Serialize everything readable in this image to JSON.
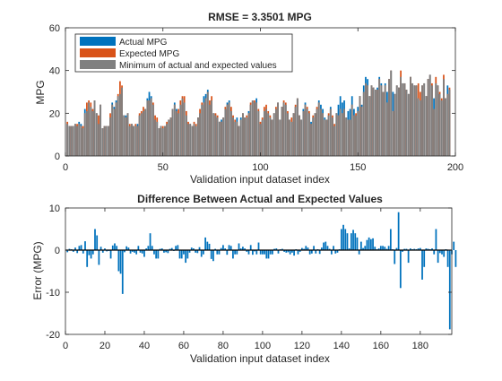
{
  "chart_data": [
    {
      "type": "bar",
      "title": "RMSE = 3.3501 MPG",
      "xlabel": "Validation input dataset index",
      "ylabel": "MPG",
      "xlim": [
        0,
        200
      ],
      "ylim": [
        0,
        60
      ],
      "xticks": [
        "0",
        "50",
        "100",
        "150",
        "200"
      ],
      "yticks": [
        "0",
        "20",
        "40",
        "60"
      ],
      "grid": false,
      "legend_placement": "top-left",
      "series": [
        {
          "name": "Actual MPG",
          "color": "#0072BD",
          "values": [
            15,
            14,
            14,
            14,
            15,
            14,
            16,
            15,
            13,
            22,
            21,
            25,
            23,
            21,
            26,
            20,
            15,
            24,
            13,
            14,
            14,
            14,
            18,
            25,
            23,
            26,
            28,
            29,
            32,
            19,
            19,
            20,
            14,
            15,
            14,
            14,
            15,
            19,
            20,
            21,
            22,
            27,
            30,
            28,
            24,
            17,
            16,
            13,
            14,
            13,
            14,
            15,
            17,
            18,
            22,
            25,
            22,
            20,
            24,
            27,
            25,
            19,
            15,
            15,
            14,
            15,
            14,
            18,
            20,
            24,
            28,
            29,
            31,
            24,
            26,
            20,
            19,
            18,
            16,
            17,
            18,
            22,
            25,
            26,
            21,
            18,
            16,
            18,
            14,
            18,
            20,
            18,
            18,
            21,
            24,
            26,
            25,
            27,
            21,
            15,
            17,
            21,
            22,
            20,
            18,
            17,
            20,
            22,
            25,
            17,
            23,
            25,
            24,
            20,
            17,
            16,
            20,
            23,
            27,
            19,
            17,
            22,
            25,
            22,
            20,
            16,
            18,
            20,
            22,
            26,
            24,
            22,
            18,
            17,
            19,
            23,
            18,
            14,
            20,
            24,
            28,
            25,
            26,
            18,
            21,
            22,
            28,
            22,
            19,
            23,
            28,
            24,
            33,
            37,
            36,
            28,
            33,
            32,
            31,
            32,
            37,
            34,
            30,
            34,
            30,
            36,
            40,
            30,
            29,
            33,
            32,
            37,
            34,
            34,
            31,
            29,
            37,
            34,
            33,
            33,
            27,
            26,
            33,
            34,
            28,
            36,
            38,
            33,
            27,
            34,
            33,
            29,
            26,
            36,
            27,
            33,
            31
          ]
        },
        {
          "name": "Expected MPG",
          "color": "#D95319",
          "values": [
            16,
            14,
            14,
            14,
            15,
            15,
            15,
            14,
            14,
            20,
            25,
            26,
            25,
            22,
            26,
            20,
            19,
            24,
            13,
            14,
            14,
            14,
            20,
            24,
            22,
            25,
            29,
            35,
            33,
            19,
            18,
            20,
            15,
            15,
            14,
            15,
            14,
            20,
            21,
            23,
            22,
            26,
            26,
            27,
            25,
            19,
            18,
            13,
            14,
            14,
            14,
            16,
            17,
            18,
            22,
            24,
            21,
            22,
            26,
            28,
            28,
            21,
            16,
            15,
            14,
            16,
            15,
            18,
            22,
            25,
            25,
            27,
            30,
            26,
            28,
            20,
            20,
            19,
            16,
            16,
            18,
            23,
            24,
            25,
            23,
            19,
            17,
            16,
            14,
            17,
            20,
            18,
            19,
            20,
            25,
            26,
            26,
            25,
            22,
            16,
            18,
            23,
            24,
            21,
            19,
            17,
            20,
            23,
            25,
            17,
            23,
            26,
            25,
            21,
            17,
            18,
            20,
            24,
            27,
            19,
            17,
            21,
            24,
            23,
            21,
            15,
            19,
            20,
            23,
            25,
            22,
            20,
            17,
            17,
            20,
            22,
            19,
            15,
            20,
            19,
            22,
            20,
            22,
            18,
            17,
            17,
            24,
            19,
            20,
            21,
            28,
            23,
            30,
            34,
            33,
            28,
            33,
            32,
            31,
            31,
            36,
            33,
            30,
            33,
            25,
            36,
            40,
            21,
            29,
            33,
            32,
            40,
            34,
            34,
            31,
            29,
            37,
            34,
            33,
            33,
            34,
            30,
            33,
            34,
            28,
            36,
            38,
            34,
            22,
            37,
            33,
            30,
            27,
            38,
            27,
            29,
            32
          ]
        },
        {
          "name": "Minimum of actual and expected values",
          "color": "#808080",
          "values": [
            15,
            14,
            14,
            14,
            15,
            14,
            15,
            14,
            13,
            20,
            21,
            25,
            23,
            21,
            26,
            20,
            15,
            24,
            13,
            14,
            14,
            14,
            18,
            24,
            22,
            25,
            28,
            29,
            32,
            19,
            18,
            20,
            14,
            15,
            14,
            14,
            14,
            19,
            20,
            21,
            22,
            26,
            26,
            27,
            24,
            17,
            16,
            13,
            14,
            13,
            14,
            15,
            17,
            18,
            22,
            24,
            21,
            20,
            24,
            27,
            25,
            19,
            15,
            15,
            14,
            15,
            14,
            18,
            20,
            24,
            25,
            27,
            30,
            24,
            26,
            20,
            19,
            18,
            16,
            16,
            18,
            22,
            24,
            25,
            21,
            18,
            16,
            16,
            14,
            17,
            20,
            18,
            18,
            20,
            24,
            26,
            25,
            25,
            21,
            15,
            17,
            21,
            22,
            20,
            18,
            17,
            20,
            22,
            25,
            17,
            23,
            25,
            24,
            20,
            17,
            16,
            20,
            23,
            27,
            19,
            17,
            21,
            24,
            22,
            20,
            15,
            18,
            20,
            22,
            25,
            22,
            20,
            17,
            17,
            19,
            22,
            18,
            14,
            20,
            19,
            22,
            20,
            22,
            18,
            17,
            17,
            24,
            19,
            19,
            21,
            28,
            23,
            30,
            34,
            33,
            28,
            33,
            32,
            31,
            31,
            36,
            33,
            30,
            33,
            25,
            36,
            40,
            21,
            29,
            33,
            32,
            37,
            34,
            34,
            31,
            29,
            37,
            34,
            33,
            33,
            27,
            26,
            33,
            34,
            28,
            36,
            38,
            33,
            22,
            34,
            33,
            29,
            26,
            36,
            27,
            29,
            31
          ]
        }
      ]
    },
    {
      "type": "bar",
      "title": "Difference Between Actual and Expected Values",
      "xlabel": "Validation input dataset index",
      "ylabel": "Error (MPG)",
      "xlim": [
        0,
        196
      ],
      "ylim": [
        -20,
        10
      ],
      "xticks": [
        "0",
        "20",
        "40",
        "60",
        "80",
        "100",
        "120",
        "140",
        "160",
        "180"
      ],
      "yticks": [
        "-20",
        "-10",
        "0",
        "10"
      ],
      "grid": false,
      "series": [
        {
          "color": "#0072BD",
          "values": [
            -0.5,
            0.3,
            0.2,
            -0.4,
            0.6,
            -0.7,
            1.0,
            1.2,
            -0.8,
            2.1,
            -4.0,
            -1.2,
            -2.0,
            -1.0,
            5.0,
            3.5,
            -3.5,
            0.8,
            -0.6,
            0.4,
            -0.3,
            -0.2,
            -2.0,
            1.1,
            1.6,
            1.0,
            -5.0,
            -5.6,
            -10.4,
            -0.5,
            0.9,
            0.6,
            -0.8,
            -0.4,
            -0.6,
            -1.0,
            1.0,
            -0.6,
            -0.8,
            -1.6,
            0.4,
            1.0,
            4.0,
            1.0,
            -1.0,
            -2.0,
            -2.0,
            0.3,
            0.4,
            -0.6,
            -0.5,
            -0.7,
            0.3,
            0.5,
            -0.2,
            1.0,
            1.2,
            -2.0,
            -2.0,
            -1.0,
            -3.0,
            -2.0,
            -0.6,
            0.6,
            0.4,
            -0.6,
            -0.7,
            0.7,
            -1.6,
            -1.0,
            3.0,
            2.0,
            1.5,
            -2.1,
            -2.6,
            0.3,
            -1.0,
            -1.0,
            0.5,
            1.2,
            0.4,
            -1.1,
            1.2,
            1.0,
            -2.0,
            -1.0,
            -1.0,
            1.6,
            0.4,
            0.8,
            0.4,
            -0.4,
            -1.0,
            1.2,
            -1.1,
            -0.3,
            -1.0,
            1.8,
            -1.0,
            -1.0,
            -1.0,
            -2.0,
            -2.0,
            -1.0,
            -1.0,
            0.3,
            0.4,
            -0.8,
            0.2,
            0.3,
            -0.4,
            -0.6,
            -0.5,
            -1.0,
            -0.6,
            -1.3,
            0.2,
            -1.0,
            -0.4,
            0.5,
            0.3,
            1.0,
            0.6,
            -1.0,
            -0.8,
            1.0,
            -0.8,
            0.2,
            -0.9,
            0.6,
            1.8,
            2.0,
            1.0,
            0.3,
            -1.0,
            1.0,
            -0.8,
            -0.6,
            0.2,
            5.0,
            6.0,
            5.0,
            4.0,
            0.4,
            4.0,
            4.8,
            4.0,
            3.0,
            -1.0,
            2.0,
            0.5,
            1.0,
            2.4,
            3.0,
            2.6,
            2.8,
            0.8,
            0.2,
            0.4,
            1.0,
            1.0,
            0.8,
            0.3,
            1.0,
            5.0,
            0.2,
            -3.3,
            0.5,
            9.0,
            -9.0,
            -0.4,
            0.3,
            0.3,
            -3.0,
            0.4,
            0.2,
            0.3,
            0.2,
            0.4,
            0.5,
            -7.0,
            -4.0,
            0.4,
            0.3,
            0.2,
            0.4,
            -1.0,
            5.0,
            -3.0,
            -0.7,
            -1.0,
            -1.6,
            0.2,
            -4.0,
            -18.8,
            -1.0,
            2.0,
            -4.0
          ]
        }
      ]
    }
  ]
}
